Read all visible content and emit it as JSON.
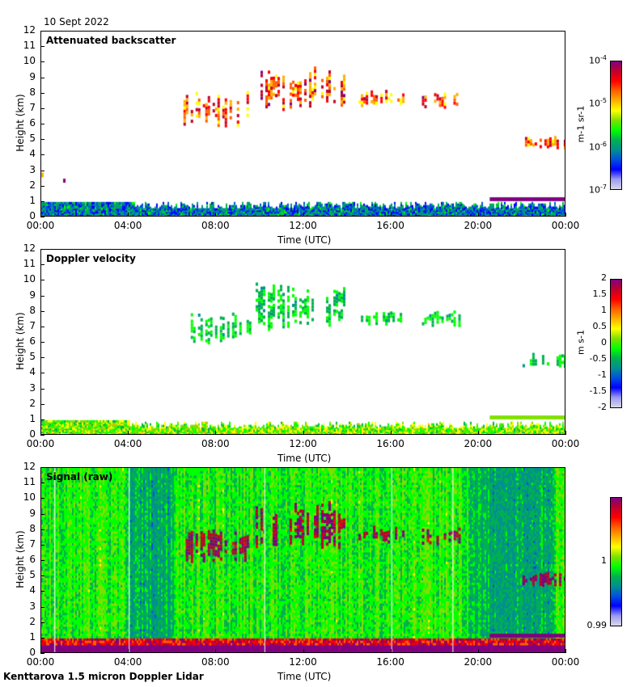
{
  "header": {
    "date": "10 Sept 2022"
  },
  "footer": {
    "site": "Kenttarova 1.5 micron Doppler Lidar"
  },
  "colors": {
    "palette": [
      "#d8d8ec",
      "#9a9aef",
      "#0000ff",
      "#0050e0",
      "#009090",
      "#00b050",
      "#00ff00",
      "#7fe000",
      "#ffff00",
      "#ffb000",
      "#ff6000",
      "#ff0000",
      "#c0002a",
      "#800080"
    ]
  },
  "chart_data": [
    {
      "type": "heatmap",
      "title": "Attenuated backscatter",
      "xlabel": "Time (UTC)",
      "ylabel": "Height (km)",
      "xlim": [
        "00:00",
        "24:00"
      ],
      "xticks": [
        "00:00",
        "04:00",
        "08:00",
        "12:00",
        "16:00",
        "20:00",
        "00:00"
      ],
      "ylim": [
        0,
        12
      ],
      "yticks": [
        "0",
        "1",
        "2",
        "3",
        "4",
        "5",
        "6",
        "7",
        "8",
        "9",
        "10",
        "11",
        "12"
      ],
      "colorbar": {
        "scale": "log",
        "range": [
          1e-07,
          0.0001
        ],
        "ticks": [
          "10^-7",
          "10^-6",
          "10^-5",
          "10^-4"
        ],
        "unit": "m-1 sr-1"
      },
      "features": [
        {
          "desc": "boundary layer aerosol",
          "time_h": [
            0,
            24
          ],
          "height_km": [
            0,
            1.0
          ],
          "level": 0.3
        },
        {
          "desc": "cirrus cloud",
          "time_h": [
            6.5,
            19
          ],
          "height_km": [
            6,
            9.8
          ],
          "level": 0.8
        },
        {
          "desc": "low cloud layer",
          "time_h": [
            20.5,
            24
          ],
          "height_km": [
            1.1,
            1.3
          ],
          "level": 1.0
        },
        {
          "desc": "mid cloud",
          "time_h": [
            20.3,
            24
          ],
          "height_km": [
            4.3,
            5.2
          ],
          "level": 0.75
        }
      ]
    },
    {
      "type": "heatmap",
      "title": "Doppler velocity",
      "xlabel": "Time (UTC)",
      "ylabel": "Height (km)",
      "xlim": [
        "00:00",
        "24:00"
      ],
      "xticks": [
        "00:00",
        "04:00",
        "08:00",
        "12:00",
        "16:00",
        "20:00",
        "00:00"
      ],
      "ylim": [
        0,
        12
      ],
      "yticks": [
        "0",
        "1",
        "2",
        "3",
        "4",
        "5",
        "6",
        "7",
        "8",
        "9",
        "10",
        "11",
        "12"
      ],
      "colorbar": {
        "scale": "linear",
        "range": [
          -2,
          2
        ],
        "ticks": [
          "-2",
          "-1.5",
          "-1",
          "-0.5",
          "0",
          "0.5",
          "1",
          "1.5",
          "2"
        ],
        "unit": "m s-1"
      }
    },
    {
      "type": "heatmap",
      "title": "Signal (raw)",
      "xlabel": "Time (UTC)",
      "ylabel": "Height (km)",
      "xlim": [
        "00:00",
        "24:00"
      ],
      "xticks": [
        "00:00",
        "04:00",
        "08:00",
        "12:00",
        "16:00",
        "20:00",
        "00:00"
      ],
      "ylim": [
        0,
        12
      ],
      "yticks": [
        "0",
        "1",
        "2",
        "3",
        "4",
        "5",
        "6",
        "7",
        "8",
        "9",
        "10",
        "11",
        "12"
      ],
      "colorbar": {
        "scale": "linear",
        "range": [
          0.99,
          1.01
        ],
        "ticks": [
          "0.99",
          "1"
        ],
        "unit": ""
      }
    }
  ]
}
